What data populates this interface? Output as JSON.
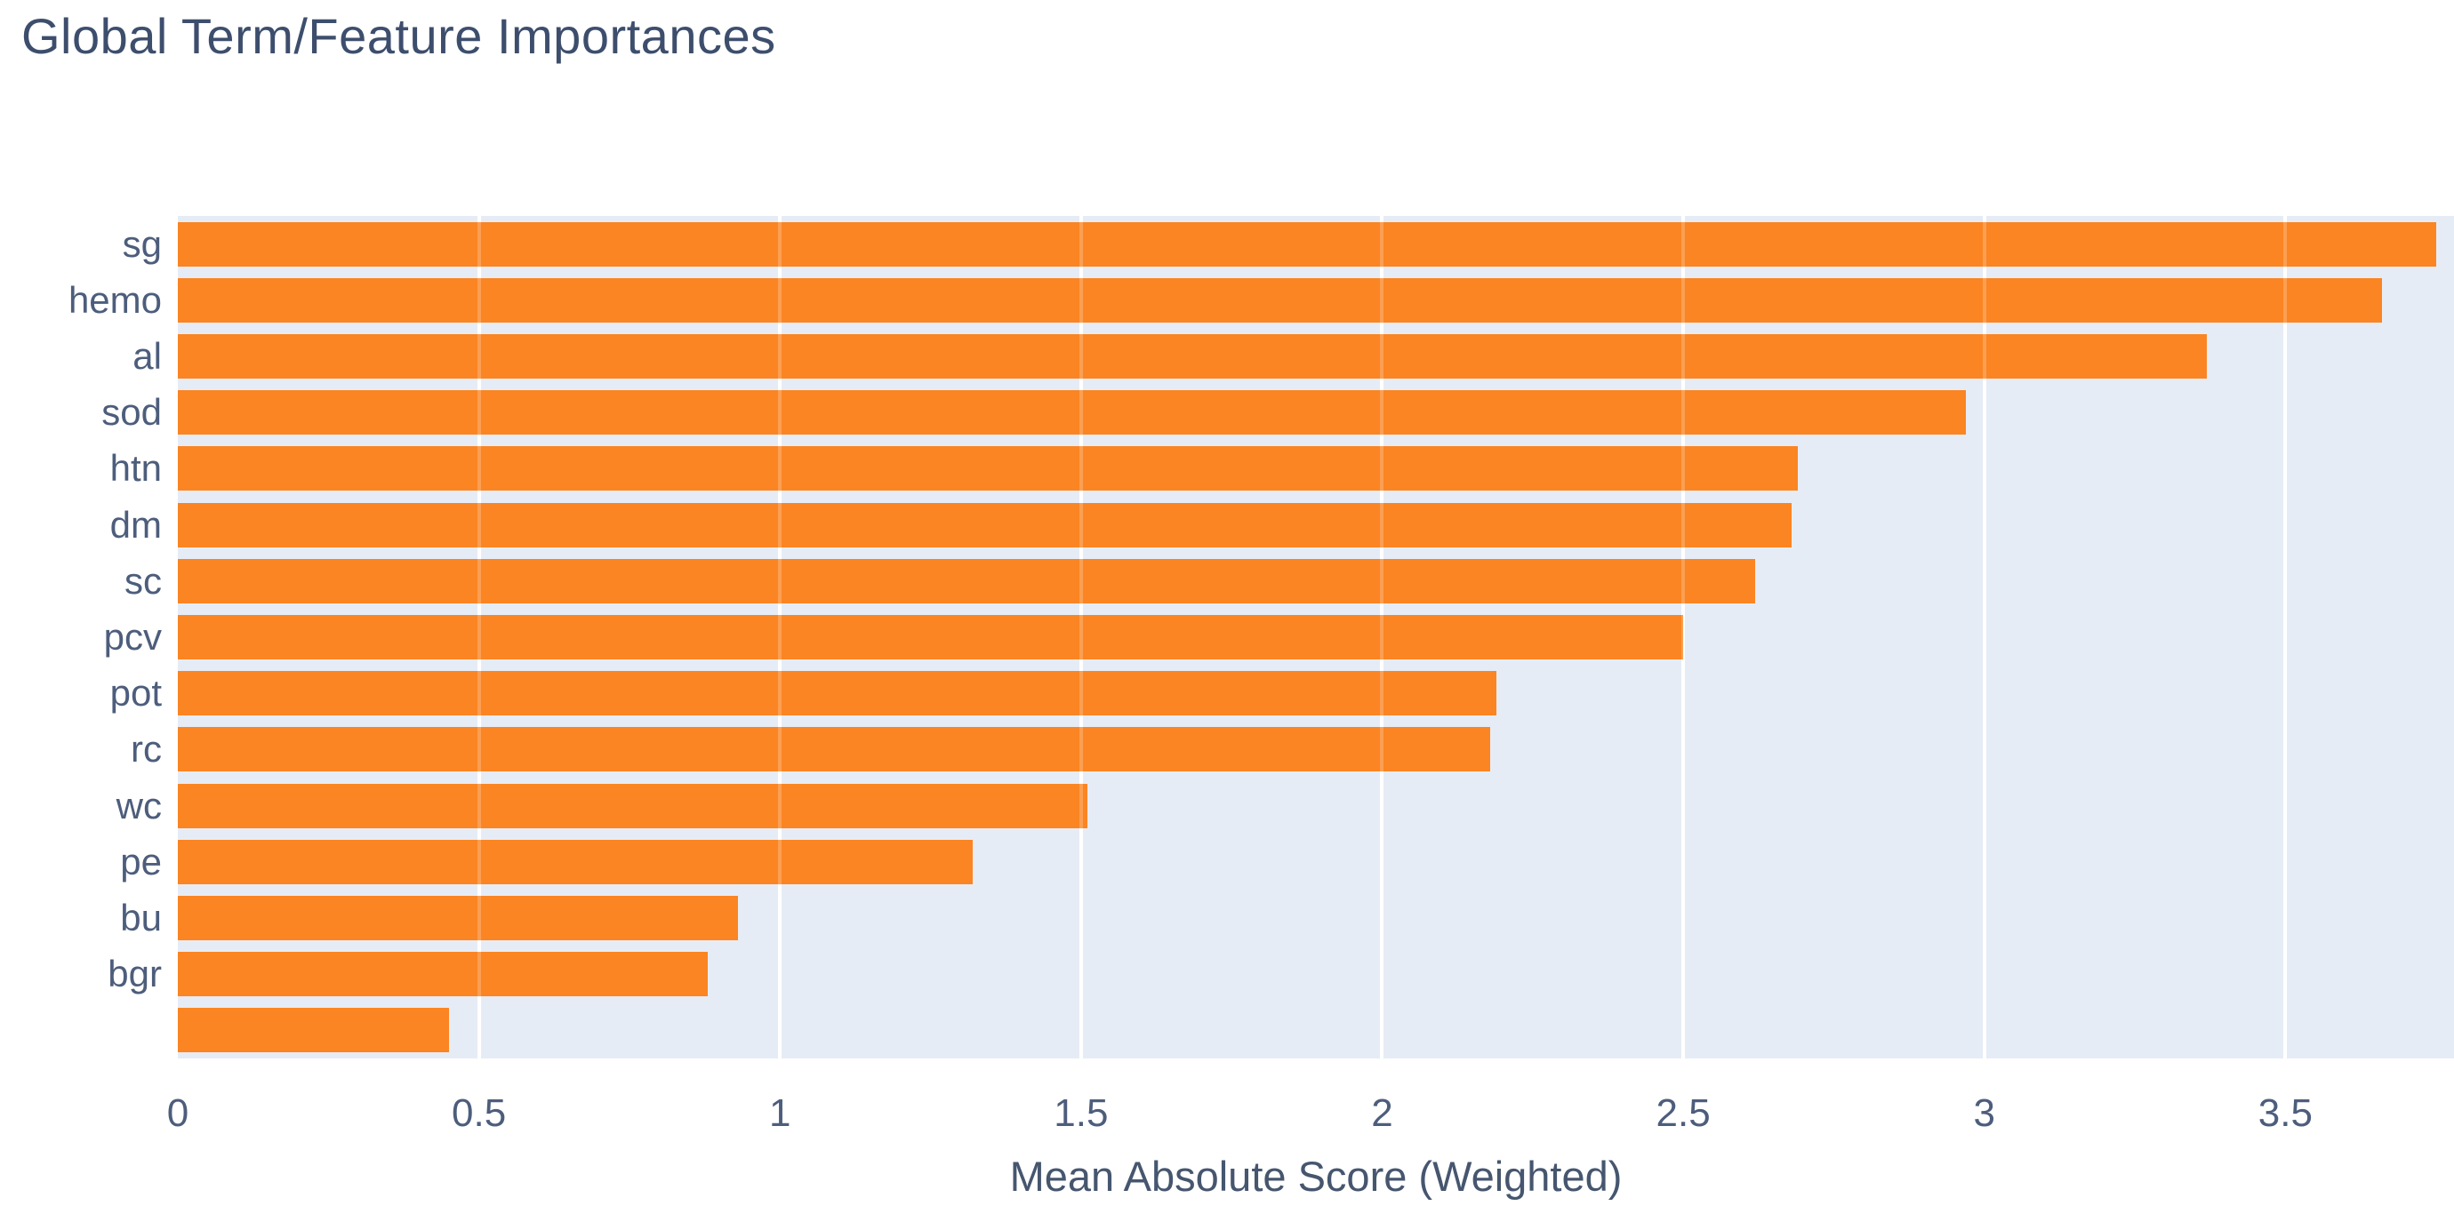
{
  "chart_data": {
    "type": "bar",
    "orientation": "horizontal",
    "title": "Global Term/Feature Importances",
    "xlabel": "Mean Absolute Score (Weighted)",
    "ylabel": "",
    "categories": [
      "sg",
      "hemo",
      "al",
      "sod",
      "htn",
      "dm",
      "sc",
      "pcv",
      "pot",
      "rc",
      "wc",
      "pe",
      "bu",
      "bgr",
      ""
    ],
    "values": [
      3.75,
      3.66,
      3.37,
      2.97,
      2.69,
      2.68,
      2.62,
      2.5,
      2.19,
      2.18,
      1.51,
      1.32,
      0.93,
      0.88,
      0.45
    ],
    "xticks": [
      0,
      0.5,
      1,
      1.5,
      2,
      2.5,
      3,
      3.5
    ],
    "xtick_labels": [
      "0",
      "0.5",
      "1",
      "1.5",
      "2",
      "2.5",
      "3",
      "3.5"
    ],
    "xlim": [
      0,
      3.78
    ],
    "grid": "on",
    "legend": "none",
    "colors": {
      "bar": "#fb8522",
      "plot_background": "#e6ecf6",
      "gridline": "#ffffff",
      "title_text": "#3d4e6d",
      "axis_text": "#4d5d7c"
    }
  }
}
